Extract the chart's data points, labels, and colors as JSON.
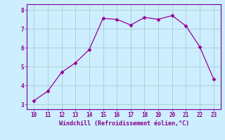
{
  "x": [
    10,
    11,
    12,
    13,
    14,
    15,
    16,
    17,
    18,
    19,
    20,
    21,
    22,
    23
  ],
  "y": [
    3.2,
    3.7,
    4.7,
    5.2,
    5.9,
    7.55,
    7.5,
    7.2,
    7.6,
    7.5,
    7.7,
    7.15,
    6.05,
    4.35
  ],
  "line_color": "#990099",
  "marker": "D",
  "marker_size": 2.5,
  "background_color": "#cceeff",
  "grid_color": "#aacccc",
  "border_color": "#7700aa",
  "xlabel": "Windchill (Refroidissement éolien,°C)",
  "xlabel_color": "#880088",
  "tick_color": "#880088",
  "xlim": [
    9.5,
    23.5
  ],
  "ylim": [
    2.75,
    8.3
  ],
  "yticks": [
    3,
    4,
    5,
    6,
    7,
    8
  ],
  "xticks": [
    10,
    11,
    12,
    13,
    14,
    15,
    16,
    17,
    18,
    19,
    20,
    21,
    22,
    23
  ],
  "tick_fontsize": 5.5,
  "xlabel_fontsize": 6.0
}
